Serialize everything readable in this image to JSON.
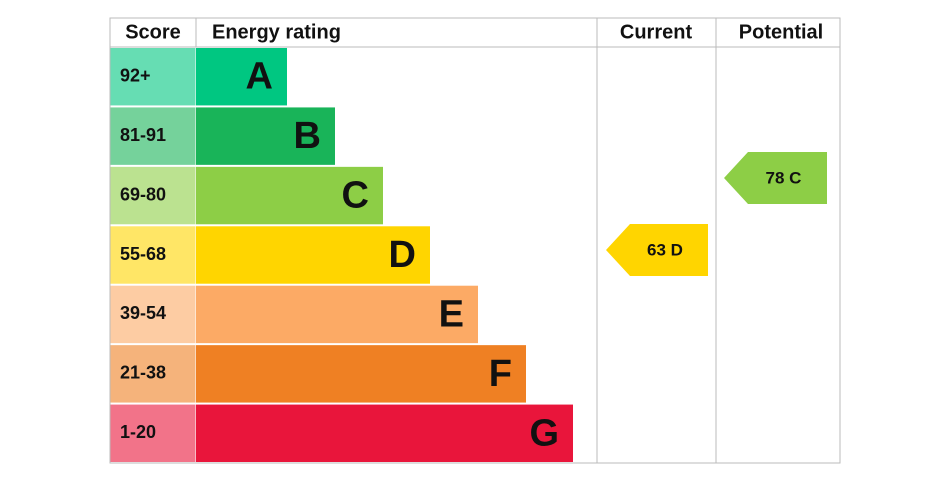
{
  "header": {
    "score": "Score",
    "rating": "Energy rating",
    "current": "Current",
    "potential": "Potential"
  },
  "bands": [
    {
      "score": "92+",
      "letter": "A",
      "color": "#00c781"
    },
    {
      "score": "81-91",
      "letter": "B",
      "color": "#19b459"
    },
    {
      "score": "69-80",
      "letter": "C",
      "color": "#8dce46"
    },
    {
      "score": "55-68",
      "letter": "D",
      "color": "#ffd500"
    },
    {
      "score": "39-54",
      "letter": "E",
      "color": "#fcaa65"
    },
    {
      "score": "21-38",
      "letter": "F",
      "color": "#ef8023"
    },
    {
      "score": "1-20",
      "letter": "G",
      "color": "#e9153b"
    }
  ],
  "current": {
    "label": "63 D",
    "color": "#ffd500"
  },
  "potential": {
    "label": "78 C",
    "color": "#8dce46"
  }
}
